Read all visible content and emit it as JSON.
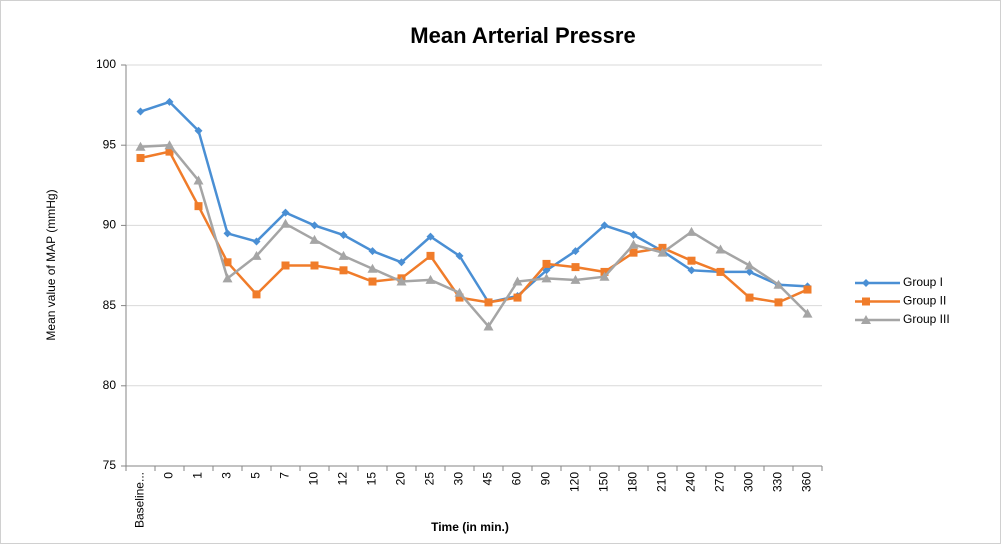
{
  "chart_data": {
    "type": "line",
    "title": "Mean Arterial Pressre",
    "x_label": "Time (in min.)",
    "y_label": "Mean value of MAP (mmHg)",
    "categories": [
      "Baseline...",
      "0",
      "1",
      "3",
      "5",
      "7",
      "10",
      "12",
      "15",
      "20",
      "25",
      "30",
      "45",
      "60",
      "90",
      "120",
      "150",
      "180",
      "210",
      "240",
      "270",
      "300",
      "330",
      "360"
    ],
    "series": [
      {
        "name": "Group I",
        "color": "#4a8fd4",
        "marker": "diamond",
        "values": [
          97.1,
          97.7,
          95.9,
          89.5,
          89.0,
          90.8,
          90.0,
          89.4,
          88.4,
          87.7,
          89.3,
          88.1,
          85.2,
          85.6,
          87.2,
          88.4,
          90.0,
          89.4,
          88.4,
          87.2,
          87.1,
          87.1,
          86.3,
          86.2
        ]
      },
      {
        "name": "Group II",
        "color": "#f07c2a",
        "marker": "square",
        "values": [
          94.2,
          94.6,
          91.2,
          87.7,
          85.7,
          87.5,
          87.5,
          87.2,
          86.5,
          86.7,
          88.1,
          85.5,
          85.2,
          85.5,
          87.6,
          87.4,
          87.1,
          88.3,
          88.6,
          87.8,
          87.1,
          85.5,
          85.2,
          86.0
        ]
      },
      {
        "name": "Group III",
        "color": "#a5a5a5",
        "marker": "triangle",
        "values": [
          94.9,
          95.0,
          92.8,
          86.7,
          88.1,
          90.1,
          89.1,
          88.1,
          87.3,
          86.5,
          86.6,
          85.8,
          83.7,
          86.5,
          86.7,
          86.6,
          86.8,
          88.8,
          88.3,
          89.6,
          88.5,
          87.5,
          86.3,
          84.5
        ]
      }
    ],
    "ylim": [
      75,
      100
    ],
    "yticks": [
      75,
      80,
      85,
      90,
      95,
      100
    ],
    "grid": true,
    "legend": "right"
  }
}
